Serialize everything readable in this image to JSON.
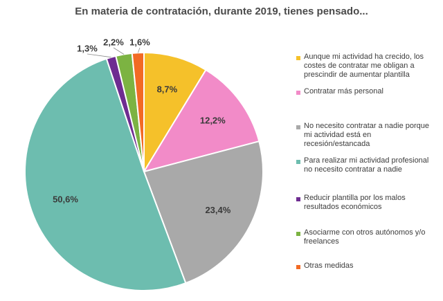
{
  "chart_data": {
    "type": "pie",
    "title": "En materia de contratación, durante 2019, tienes pensado...",
    "start_angle_deg": 0,
    "direction": "clockwise",
    "legend_placement": "right",
    "slices": [
      {
        "label": "Aunque mi actividad ha crecido, los costes de contratar me obligan a prescindir de aumentar plantilla",
        "value": 8.7,
        "display": "8,7%",
        "color": "#F5C12A"
      },
      {
        "label": "Contratar más personal",
        "value": 12.2,
        "display": "12,2%",
        "color": "#F28BC8"
      },
      {
        "label": "No necesito contratar a nadie porque mi actividad está en recesión/estancada",
        "value": 23.4,
        "display": "23,4%",
        "color": "#A9A9A9"
      },
      {
        "label": "Para realizar mi actividad profesional no necesito contratar a nadie",
        "value": 50.6,
        "display": "50,6%",
        "color": "#6DBDAF"
      },
      {
        "label": "Reducir plantilla por los malos resultados económicos",
        "value": 1.3,
        "display": "1,3%",
        "color": "#6E2C91"
      },
      {
        "label": "Asociarme con otros autónomos y/o freelances",
        "value": 2.2,
        "display": "2,2%",
        "color": "#7CB342"
      },
      {
        "label": "Otras medidas",
        "value": 1.6,
        "display": "1,6%",
        "color": "#F26A24"
      }
    ]
  }
}
